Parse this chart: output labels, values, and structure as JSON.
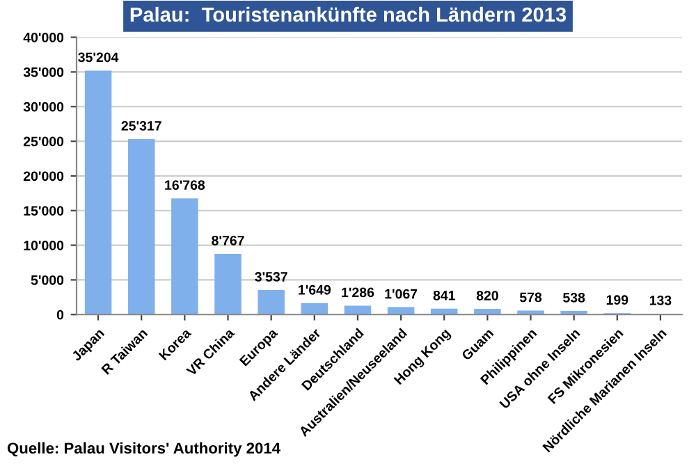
{
  "chart_data": {
    "type": "bar",
    "title": "Palau:  Touristenankünfte nach Ländern 2013",
    "categories": [
      "Japan",
      "R Taiwan",
      "Korea",
      "VR China",
      "Europa",
      "Andere Länder",
      "Deutschland",
      "Australien/Neuseeland",
      "Hong Kong",
      "Guam",
      "Philippinen",
      "USA ohne Inseln",
      "FS Mikronesien",
      "Nördliche Marianen Inseln"
    ],
    "values": [
      35204,
      25317,
      16768,
      8767,
      3537,
      1649,
      1286,
      1067,
      841,
      820,
      578,
      538,
      199,
      133
    ],
    "value_labels": [
      "35'204",
      "25'317",
      "16'768",
      "8'767",
      "3'537",
      "1'649",
      "1'286",
      "1'067",
      "841",
      "820",
      "578",
      "538",
      "199",
      "133"
    ],
    "color": "#7fb0ec",
    "ylim": [
      0,
      40000
    ],
    "yticks": [
      {
        "value": 0,
        "label": "0"
      },
      {
        "value": 5000,
        "label": "5'000"
      },
      {
        "value": 10000,
        "label": "10'000"
      },
      {
        "value": 15000,
        "label": "15'000"
      },
      {
        "value": 20000,
        "label": "20'000"
      },
      {
        "value": 25000,
        "label": "25'000"
      },
      {
        "value": 30000,
        "label": "30'000"
      },
      {
        "value": 35000,
        "label": "35'000"
      },
      {
        "value": 40000,
        "label": "40'000"
      }
    ],
    "grid": "y",
    "annotations": [
      "Quelle: Palau Visitors' Authority 2014"
    ]
  }
}
